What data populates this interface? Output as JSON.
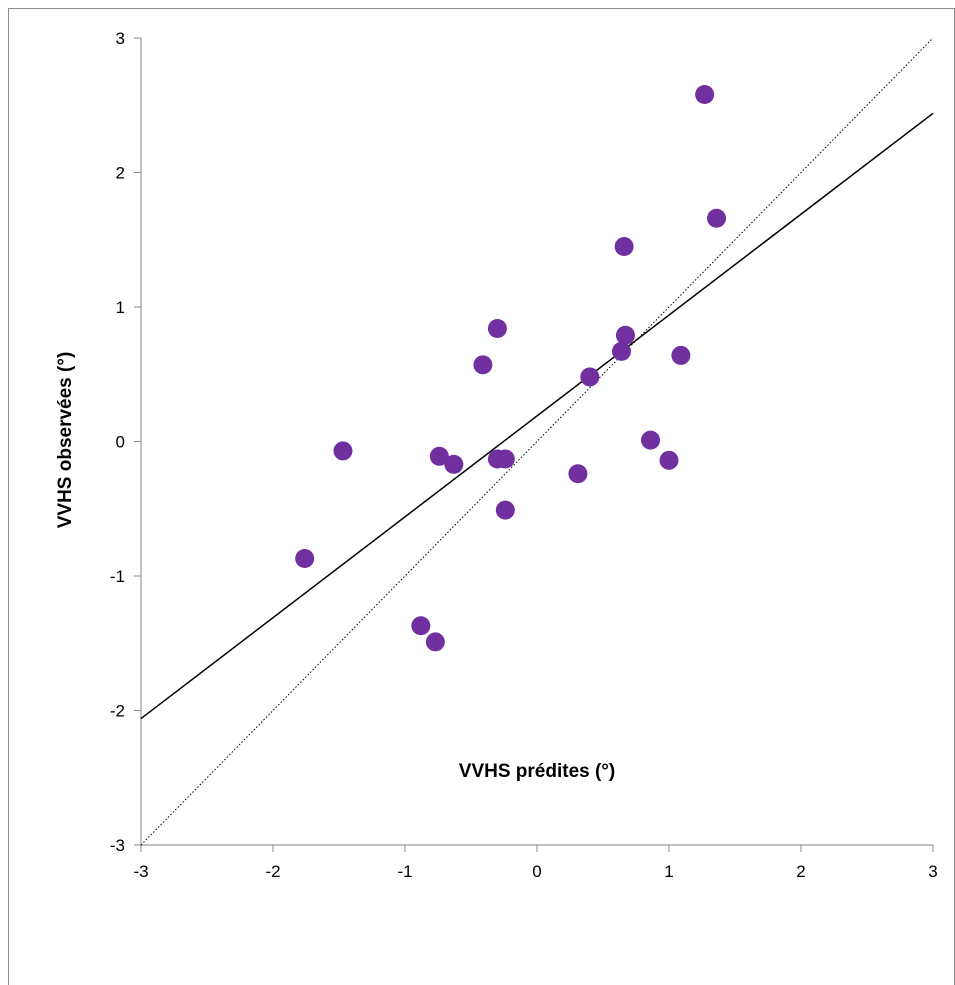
{
  "chart_data": {
    "type": "scatter",
    "xlabel": "VVHS prédites (°)",
    "ylabel": "VVHS observées (°)",
    "xlim": [
      -3,
      3
    ],
    "ylim": [
      -3,
      3
    ],
    "x_ticks": [
      "-3",
      "-2",
      "-1",
      "0",
      "1",
      "2",
      "3"
    ],
    "y_ticks": [
      "-3",
      "-2",
      "-1",
      "0",
      "1",
      "2",
      "3"
    ],
    "grid": false,
    "legend": "none",
    "point_color": "#7030A0",
    "series": [
      {
        "points": [
          {
            "x": 1.27,
            "y": 2.58
          },
          {
            "x": 1.36,
            "y": 1.66
          },
          {
            "x": 0.66,
            "y": 1.45
          },
          {
            "x": -0.3,
            "y": 0.84
          },
          {
            "x": 0.67,
            "y": 0.79
          },
          {
            "x": 0.64,
            "y": 0.67
          },
          {
            "x": 1.09,
            "y": 0.64
          },
          {
            "x": -0.41,
            "y": 0.57
          },
          {
            "x": 0.4,
            "y": 0.48
          },
          {
            "x": 0.86,
            "y": 0.01
          },
          {
            "x": -1.47,
            "y": -0.07
          },
          {
            "x": -0.74,
            "y": -0.11
          },
          {
            "x": -0.63,
            "y": -0.17
          },
          {
            "x": -0.3,
            "y": -0.13
          },
          {
            "x": -0.24,
            "y": -0.13
          },
          {
            "x": 1.0,
            "y": -0.14
          },
          {
            "x": 0.31,
            "y": -0.24
          },
          {
            "x": -0.24,
            "y": -0.51
          },
          {
            "x": -1.76,
            "y": -0.87
          },
          {
            "x": -0.88,
            "y": -1.37
          },
          {
            "x": -0.77,
            "y": -1.49
          }
        ]
      }
    ],
    "lines": [
      {
        "style": "solid",
        "color": "#000000",
        "from": [
          -3,
          -2.06
        ],
        "to": [
          3,
          2.44
        ]
      },
      {
        "style": "dotted",
        "color": "#000000",
        "from": [
          -3,
          -3
        ],
        "to": [
          3,
          3
        ]
      }
    ]
  }
}
